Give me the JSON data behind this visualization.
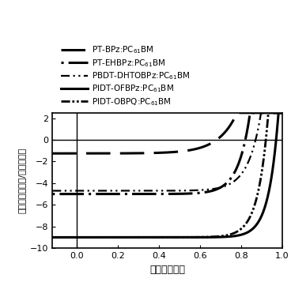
{
  "xlabel": "电压（伏特）",
  "ylabel": "电流密度（毫安/平方压米）",
  "xlim": [
    -0.12,
    1.0
  ],
  "ylim": [
    -10,
    2.5
  ],
  "yticks": [
    -10,
    -8,
    -6,
    -4,
    -2,
    0,
    2
  ],
  "xticks": [
    0,
    0.2,
    0.4,
    0.6,
    0.8,
    1.0
  ],
  "legend_labels": [
    "PT-BPz:PC$_{61}$BM",
    "PT-EHBPz:PC$_{61}$BM",
    "PBDT-DHTOBPz:PC$_{61}$BM",
    "PIDT-OFBPz:PC$_{61}$BM",
    "PIDT-OBPQ:PC$_{61}$BM"
  ],
  "background_color": "#ffffff",
  "line_color": "#000000",
  "curves": [
    {
      "Jsc": -1.25,
      "Voc": 0.68,
      "n": 3.5,
      "lw": 2.2,
      "clip_top": 2.5
    },
    {
      "Jsc": -5.0,
      "Voc": 0.82,
      "n": 2.2,
      "lw": 2.2,
      "clip_top": 2.5
    },
    {
      "Jsc": -4.7,
      "Voc": 0.87,
      "n": 2.4,
      "lw": 1.6,
      "clip_top": 2.5
    },
    {
      "Jsc": -9.0,
      "Voc": 0.97,
      "n": 1.8,
      "lw": 2.2,
      "clip_top": 2.5
    },
    {
      "Jsc": -9.0,
      "Voc": 0.92,
      "n": 1.9,
      "lw": 2.0,
      "clip_top": 2.5
    }
  ]
}
